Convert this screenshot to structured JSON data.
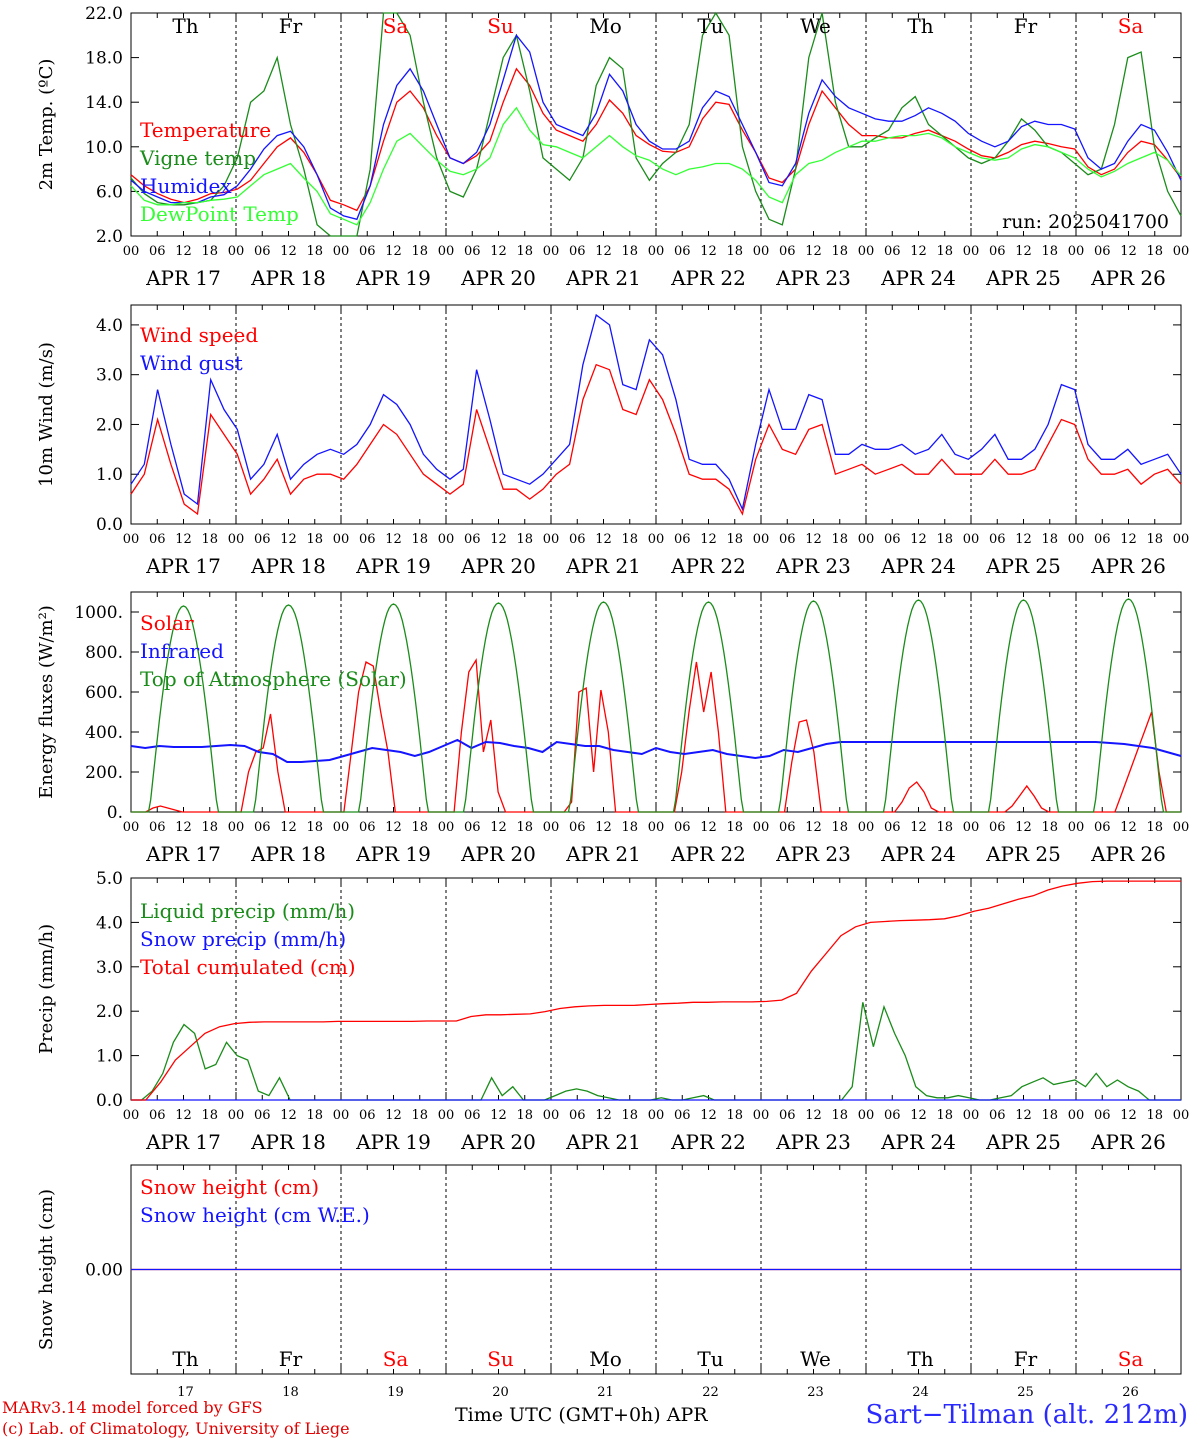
{
  "chart_data": [
    {
      "type": "line",
      "ylabel": "2m Temp. (ºC)",
      "ylim": [
        2,
        22
      ],
      "yticks": [
        "2.0",
        "6.0",
        "10.0",
        "14.0",
        "18.0",
        "22.0"
      ],
      "annotation": "run: 2025041700",
      "series": [
        {
          "name": "Temperature",
          "color": "#ff0000",
          "values": [
            7.5,
            6.5,
            5.8,
            5.3,
            5.0,
            5.3,
            5.8,
            5.9,
            6.2,
            7.0,
            8.5,
            10.0,
            10.8,
            9.5,
            7.5,
            5.2,
            4.8,
            4.3,
            6.5,
            10.5,
            14.0,
            15.0,
            13.5,
            11.0,
            9.0,
            8.5,
            9.2,
            10.5,
            14.0,
            17.0,
            15.5,
            13.0,
            11.5,
            11.0,
            10.5,
            12.0,
            14.2,
            13.0,
            11.0,
            10.2,
            9.6,
            9.5,
            10.0,
            12.5,
            14.0,
            13.8,
            11.5,
            9.5,
            7.2,
            6.8,
            8.0,
            12.0,
            15.0,
            13.5,
            12.0,
            11.0,
            11.0,
            10.8,
            10.8,
            11.2,
            11.5,
            11.0,
            10.5,
            9.8,
            9.2,
            9.0,
            9.5,
            10.2,
            10.5,
            10.3,
            10.0,
            9.8,
            8.2,
            7.5,
            8.0,
            9.5,
            10.5,
            10.2,
            8.8,
            7.2
          ]
        },
        {
          "name": "Vigne temp",
          "color": "#1a8c1a",
          "values": [
            7.2,
            5.8,
            5.0,
            4.8,
            4.8,
            5.0,
            5.2,
            6.5,
            9.0,
            14.0,
            15.0,
            18.0,
            12.0,
            8.0,
            3.0,
            1.8,
            1.0,
            0.8,
            8.0,
            22.0,
            22.0,
            20.0,
            14.0,
            9.0,
            6.0,
            5.5,
            8.0,
            13.0,
            18.0,
            20.0,
            15.0,
            9.0,
            8.0,
            7.0,
            9.0,
            15.5,
            18.0,
            17.0,
            9.0,
            7.0,
            8.5,
            9.5,
            12.0,
            20.0,
            22.0,
            20.0,
            10.0,
            6.0,
            3.5,
            3.0,
            8.0,
            18.0,
            22.0,
            14.0,
            10.0,
            10.0,
            10.8,
            11.5,
            13.5,
            14.5,
            12.0,
            11.0,
            10.0,
            9.0,
            8.5,
            9.0,
            10.5,
            12.5,
            11.5,
            10.0,
            9.5,
            8.5,
            7.5,
            8.0,
            12.0,
            18.0,
            18.5,
            10.0,
            6.0,
            3.8
          ]
        },
        {
          "name": "Humidex",
          "color": "#1414ff",
          "values": [
            7.0,
            6.0,
            5.5,
            5.0,
            5.0,
            5.0,
            5.5,
            5.7,
            6.5,
            8.0,
            9.8,
            11.0,
            11.4,
            10.0,
            7.5,
            4.5,
            3.8,
            3.5,
            6.5,
            12.0,
            15.5,
            17.0,
            15.0,
            12.0,
            9.0,
            8.5,
            9.5,
            12.0,
            16.0,
            20.0,
            18.5,
            14.0,
            12.0,
            11.5,
            11.0,
            13.0,
            16.5,
            15.0,
            12.0,
            10.5,
            9.8,
            9.8,
            10.5,
            13.5,
            15.0,
            14.5,
            12.0,
            9.5,
            6.8,
            6.5,
            8.5,
            13.0,
            16.0,
            14.5,
            13.5,
            13.0,
            12.5,
            12.3,
            12.3,
            12.8,
            13.5,
            13.0,
            12.3,
            11.2,
            10.5,
            10.0,
            10.5,
            11.8,
            12.3,
            12.0,
            12.0,
            11.6,
            9.0,
            8.0,
            8.5,
            10.5,
            12.0,
            11.5,
            9.5,
            7.0
          ]
        },
        {
          "name": "DewPoint Temp",
          "color": "#33ff33",
          "values": [
            6.5,
            5.2,
            4.8,
            4.8,
            5.0,
            5.0,
            5.2,
            5.3,
            5.5,
            6.5,
            7.5,
            8.0,
            8.5,
            7.2,
            6.0,
            4.0,
            3.5,
            3.0,
            5.0,
            8.0,
            10.5,
            11.2,
            10.0,
            8.8,
            7.8,
            7.5,
            8.0,
            9.0,
            12.0,
            13.5,
            11.5,
            10.2,
            10.0,
            9.5,
            9.0,
            10.0,
            11.0,
            10.0,
            9.2,
            8.8,
            8.0,
            7.5,
            8.0,
            8.2,
            8.5,
            8.5,
            8.0,
            7.0,
            5.5,
            5.0,
            7.5,
            8.5,
            8.8,
            9.5,
            10.0,
            10.5,
            10.5,
            10.8,
            11.0,
            11.0,
            11.2,
            10.8,
            10.0,
            9.5,
            9.0,
            8.8,
            9.0,
            9.8,
            10.2,
            10.0,
            9.5,
            9.0,
            8.0,
            7.3,
            7.8,
            8.5,
            9.0,
            9.5,
            8.8,
            7.4
          ]
        }
      ]
    },
    {
      "type": "line",
      "ylabel": "10m Wind (m/s)",
      "ylim": [
        0,
        4.4
      ],
      "yticks": [
        "0.0",
        "1.0",
        "2.0",
        "3.0",
        "4.0"
      ],
      "series": [
        {
          "name": "Wind speed",
          "color": "#ff0000",
          "values": [
            0.6,
            1.0,
            2.1,
            1.2,
            0.4,
            0.2,
            2.2,
            1.8,
            1.4,
            0.6,
            0.9,
            1.3,
            0.6,
            0.9,
            1.0,
            1.0,
            0.9,
            1.2,
            1.6,
            2.0,
            1.8,
            1.4,
            1.0,
            0.8,
            0.6,
            0.8,
            2.3,
            1.5,
            0.7,
            0.7,
            0.5,
            0.7,
            1.0,
            1.2,
            2.5,
            3.2,
            3.1,
            2.3,
            2.2,
            2.9,
            2.5,
            1.8,
            1.0,
            0.9,
            0.9,
            0.7,
            0.2,
            1.3,
            2.0,
            1.5,
            1.4,
            1.9,
            2.0,
            1.0,
            1.1,
            1.2,
            1.0,
            1.1,
            1.2,
            1.0,
            1.0,
            1.3,
            1.0,
            1.0,
            1.0,
            1.3,
            1.0,
            1.0,
            1.1,
            1.6,
            2.1,
            2.0,
            1.3,
            1.0,
            1.0,
            1.1,
            0.8,
            1.0,
            1.1,
            0.8
          ]
        },
        {
          "name": "Wind gust",
          "color": "#1414ff",
          "values": [
            0.8,
            1.2,
            2.7,
            1.6,
            0.6,
            0.4,
            2.9,
            2.3,
            1.9,
            0.9,
            1.2,
            1.8,
            0.9,
            1.2,
            1.4,
            1.5,
            1.4,
            1.6,
            2.0,
            2.6,
            2.4,
            2.0,
            1.4,
            1.1,
            0.9,
            1.1,
            3.1,
            2.1,
            1.0,
            0.9,
            0.8,
            1.0,
            1.3,
            1.6,
            3.2,
            4.2,
            4.0,
            2.8,
            2.7,
            3.7,
            3.4,
            2.5,
            1.3,
            1.2,
            1.2,
            0.9,
            0.3,
            1.6,
            2.7,
            1.9,
            1.9,
            2.6,
            2.5,
            1.4,
            1.4,
            1.6,
            1.5,
            1.5,
            1.6,
            1.4,
            1.5,
            1.8,
            1.4,
            1.3,
            1.5,
            1.8,
            1.3,
            1.3,
            1.5,
            2.0,
            2.8,
            2.7,
            1.6,
            1.3,
            1.3,
            1.5,
            1.2,
            1.3,
            1.4,
            1.0
          ]
        }
      ]
    },
    {
      "type": "line",
      "ylabel": "Energy fluxes (W/m²)",
      "ylim": [
        0,
        1100
      ],
      "yticks": [
        "0.",
        "200.",
        "400.",
        "600.",
        "800.",
        "1000."
      ],
      "series": [
        {
          "name": "Solar",
          "color": "#ff0000",
          "values": [
            0,
            0,
            0,
            20,
            30,
            20,
            10,
            0,
            0,
            0,
            0,
            0,
            0,
            0,
            0,
            0,
            200,
            300,
            320,
            490,
            200,
            0,
            0,
            0,
            0,
            0,
            0,
            0,
            0,
            0,
            300,
            600,
            750,
            730,
            500,
            300,
            0,
            0,
            0,
            0,
            0,
            0,
            0,
            0,
            0,
            400,
            700,
            760,
            300,
            460,
            100,
            0,
            0,
            0,
            0,
            0,
            0,
            0,
            0,
            0,
            50,
            600,
            620,
            200,
            610,
            400,
            0,
            0,
            0,
            0,
            0,
            0,
            0,
            0,
            0,
            200,
            500,
            750,
            500,
            700,
            400,
            0,
            0,
            0,
            0,
            0,
            0,
            0,
            0,
            0,
            250,
            450,
            460,
            300,
            0,
            0,
            0,
            0,
            0,
            0,
            0,
            0,
            0,
            0,
            0,
            50,
            120,
            150,
            100,
            20,
            0,
            0,
            0,
            0,
            0,
            0,
            0,
            0,
            0,
            0,
            30,
            80,
            130,
            80,
            20,
            0,
            0,
            0,
            0,
            0,
            0,
            0,
            0,
            0,
            0,
            100,
            200,
            300,
            400,
            500,
            200,
            0,
            0,
            0
          ]
        },
        {
          "name": "Infrared",
          "color": "#1414ff",
          "values": [
            330,
            320,
            330,
            325,
            325,
            325,
            330,
            335,
            330,
            300,
            290,
            250,
            250,
            255,
            260,
            280,
            300,
            320,
            310,
            300,
            280,
            300,
            330,
            360,
            320,
            350,
            345,
            330,
            320,
            300,
            350,
            340,
            330,
            330,
            310,
            300,
            290,
            320,
            300,
            290,
            300,
            310,
            290,
            280,
            270,
            280,
            310,
            300,
            320,
            340,
            350,
            350,
            350,
            350,
            350,
            350,
            350,
            350,
            350,
            350,
            350,
            350,
            350,
            350,
            350,
            350,
            350,
            350,
            350,
            345,
            340,
            330,
            320,
            300,
            280
          ]
        },
        {
          "name": "Top of Atmosphere (Solar)",
          "color": "#1a8c1a",
          "values": [
            1030,
            1035,
            1040,
            1045,
            1050,
            1050,
            1055,
            1060,
            1060,
            1065
          ]
        }
      ]
    },
    {
      "type": "line",
      "ylabel": "Precip (mm/h)",
      "ylim": [
        0,
        5
      ],
      "yticks": [
        "0.0",
        "1.0",
        "2.0",
        "3.0",
        "4.0",
        "5.0"
      ],
      "series": [
        {
          "name": "Liquid precip (mm/h)",
          "color": "#1a8c1a",
          "values": [
            0,
            0,
            0.2,
            0.6,
            1.3,
            1.7,
            1.5,
            0.7,
            0.8,
            1.3,
            1.0,
            0.9,
            0.2,
            0.1,
            0.5,
            0,
            0,
            0,
            0,
            0,
            0,
            0,
            0,
            0,
            0,
            0,
            0,
            0,
            0,
            0,
            0,
            0,
            0,
            0,
            0.5,
            0.1,
            0.3,
            0,
            0,
            0,
            0.1,
            0.2,
            0.25,
            0.2,
            0.1,
            0.05,
            0,
            0,
            0,
            0,
            0.05,
            0,
            0,
            0.05,
            0.1,
            0,
            0,
            0,
            0,
            0,
            0,
            0,
            0,
            0,
            0,
            0,
            0,
            0,
            0.3,
            2.2,
            1.2,
            2.1,
            1.5,
            1.0,
            0.3,
            0.1,
            0.05,
            0.05,
            0.1,
            0.05,
            0,
            0,
            0.05,
            0.1,
            0.3,
            0.4,
            0.5,
            0.35,
            0.4,
            0.45,
            0.3,
            0.6,
            0.3,
            0.45,
            0.3,
            0.2,
            0,
            0,
            0,
            0
          ]
        },
        {
          "name": "Snow precip (mm/h)",
          "color": "#1414ff",
          "values": [
            0,
            0,
            0,
            0,
            0,
            0,
            0,
            0,
            0,
            0
          ]
        },
        {
          "name": "Total cumulated (cm)",
          "color": "#ff0000",
          "values": [
            0,
            0,
            0.4,
            0.9,
            1.2,
            1.5,
            1.65,
            1.72,
            1.75,
            1.76,
            1.76,
            1.76,
            1.76,
            1.76,
            1.77,
            1.77,
            1.77,
            1.77,
            1.77,
            1.77,
            1.78,
            1.78,
            1.78,
            1.88,
            1.92,
            1.92,
            1.93,
            1.94,
            1.99,
            2.06,
            2.1,
            2.12,
            2.13,
            2.13,
            2.13,
            2.15,
            2.17,
            2.18,
            2.2,
            2.2,
            2.21,
            2.21,
            2.21,
            2.22,
            2.25,
            2.4,
            2.9,
            3.3,
            3.7,
            3.9,
            4.0,
            4.02,
            4.04,
            4.05,
            4.06,
            4.08,
            4.15,
            4.25,
            4.32,
            4.42,
            4.52,
            4.6,
            4.73,
            4.82,
            4.88,
            4.92,
            4.93,
            4.93,
            4.93,
            4.93,
            4.93,
            4.93
          ]
        }
      ]
    },
    {
      "type": "line",
      "ylabel": "Snow height (cm)",
      "yticks": [
        "0.00"
      ],
      "series": [
        {
          "name": "Snow height (cm)",
          "color": "#ff0000",
          "values": [
            0,
            0,
            0,
            0,
            0,
            0,
            0,
            0,
            0,
            0,
            0
          ]
        },
        {
          "name": "Snow height (cm W.E.)",
          "color": "#1414ff",
          "values": [
            0,
            0,
            0,
            0,
            0,
            0,
            0,
            0,
            0,
            0,
            0
          ]
        }
      ]
    }
  ],
  "axis": {
    "hour_ticks": [
      "00",
      "06",
      "12",
      "18"
    ],
    "final_tick": "00",
    "dates": [
      "APR 17",
      "APR 18",
      "APR 19",
      "APR 20",
      "APR 21",
      "APR 22",
      "APR 23",
      "APR 24",
      "APR 25",
      "APR 26"
    ],
    "weekdays": [
      "Th",
      "Fr",
      "Sa",
      "Su",
      "Mo",
      "Tu",
      "We",
      "Th",
      "Fr",
      "Sa"
    ],
    "weekday_colors": [
      "#000000",
      "#000000",
      "#ff0000",
      "#ff0000",
      "#000000",
      "#000000",
      "#000000",
      "#000000",
      "#000000",
      "#ff0000"
    ],
    "day_numbers": [
      "17",
      "18",
      "19",
      "20",
      "21",
      "22",
      "23",
      "24",
      "25",
      "26"
    ]
  },
  "footer": {
    "model": "MARv3.14 model forced by GFS",
    "lab": "(c) Lab. of Climatology, University of Liege",
    "xlabel": "Time UTC (GMT+0h) APR",
    "station": "Sart−Tilman (alt. 212m)"
  }
}
